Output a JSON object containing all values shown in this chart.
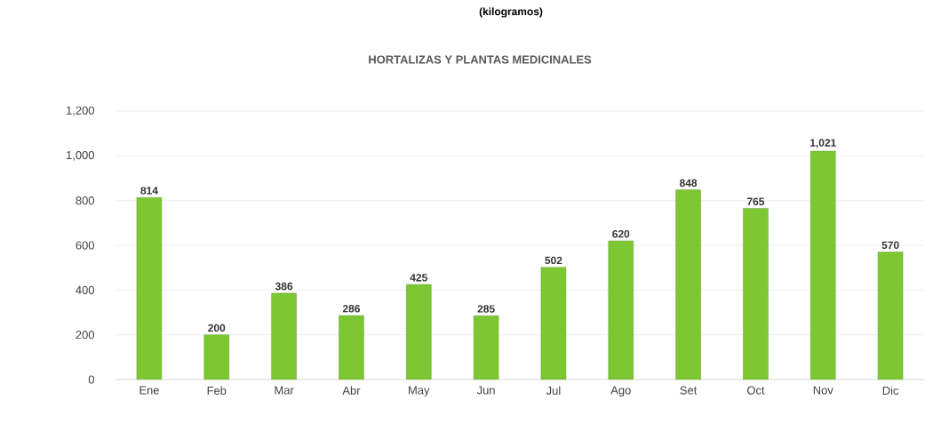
{
  "chart_data": {
    "type": "bar",
    "title": "HORTALIZAS  Y PLANTAS MEDICINALES",
    "subtitle": "(kilogramos)",
    "categories": [
      "Ene",
      "Feb",
      "Mar",
      "Abr",
      "May",
      "Jun",
      "Jul",
      "Ago",
      "Set",
      "Oct",
      "Nov",
      "Dic"
    ],
    "values": [
      814,
      200,
      386,
      286,
      425,
      285,
      502,
      620,
      848,
      765,
      1021,
      570
    ],
    "value_labels": [
      "814",
      "200",
      "386",
      "286",
      "425",
      "285",
      "502",
      "620",
      "848",
      "765",
      "1,021",
      "570"
    ],
    "color": "#7dc832",
    "ylim": [
      0,
      1200
    ],
    "yticks": [
      0,
      200,
      400,
      600,
      800,
      {
        "value": 1000,
        "label": "1,000"
      },
      {
        "value": 1200,
        "label": "1,200"
      }
    ],
    "grid": "y"
  }
}
